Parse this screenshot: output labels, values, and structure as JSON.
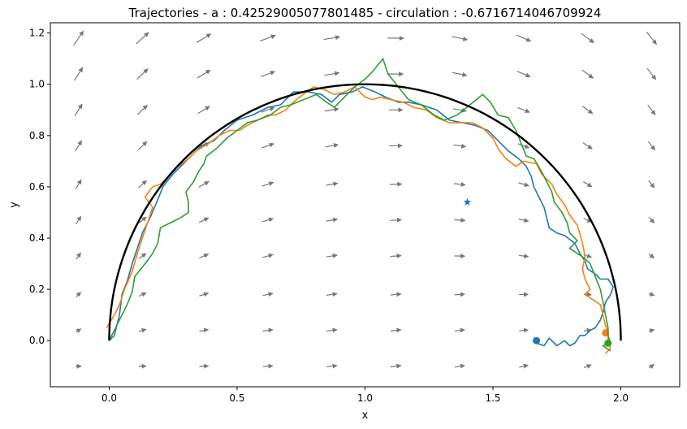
{
  "chart_data": {
    "type": "line",
    "title": "Trajectories - a : 0.42529005077801485 - circulation : -0.6716714046709924",
    "xlabel": "x",
    "ylabel": "y",
    "xlim": [
      -0.23,
      2.23
    ],
    "ylim": [
      -0.18,
      1.24
    ],
    "xticks": [
      0.0,
      0.5,
      1.0,
      1.5,
      2.0
    ],
    "xtick_labels": [
      "0.0",
      "0.5",
      "1.0",
      "1.5",
      "2.0"
    ],
    "yticks": [
      0.0,
      0.2,
      0.4,
      0.6,
      0.8,
      1.0,
      1.2
    ],
    "ytick_labels": [
      "0.0",
      "0.2",
      "0.4",
      "0.6",
      "0.8",
      "1.0",
      "1.2"
    ],
    "grid": false,
    "reference_curve": {
      "type": "semicircle",
      "center": [
        1.0,
        0.0
      ],
      "radius": 1.0,
      "color": "#000000"
    },
    "star_marker": {
      "x": 1.4,
      "y": 0.54,
      "color": "#1f77b4"
    },
    "vector_field": {
      "color": "#777777",
      "x": [
        -0.12,
        0.13,
        0.37,
        0.62,
        0.87,
        1.12,
        1.37,
        1.62,
        1.87,
        2.12
      ],
      "y": [
        -0.1,
        0.04,
        0.18,
        0.33,
        0.47,
        0.61,
        0.76,
        0.9,
        1.04,
        1.18
      ]
    },
    "series": [
      {
        "color": "#1f77b4",
        "points": [
          [
            0.0,
            0.0
          ],
          [
            0.02,
            0.02
          ],
          [
            0.03,
            0.06
          ],
          [
            0.04,
            0.1
          ],
          [
            0.05,
            0.18
          ],
          [
            0.07,
            0.23
          ],
          [
            0.09,
            0.3
          ],
          [
            0.11,
            0.36
          ],
          [
            0.13,
            0.42
          ],
          [
            0.16,
            0.48
          ],
          [
            0.19,
            0.55
          ],
          [
            0.21,
            0.6
          ],
          [
            0.25,
            0.65
          ],
          [
            0.29,
            0.69
          ],
          [
            0.33,
            0.73
          ],
          [
            0.36,
            0.76
          ],
          [
            0.41,
            0.78
          ],
          [
            0.45,
            0.82
          ],
          [
            0.5,
            0.86
          ],
          [
            0.56,
            0.88
          ],
          [
            0.62,
            0.91
          ],
          [
            0.67,
            0.92
          ],
          [
            0.72,
            0.97
          ],
          [
            0.78,
            0.97
          ],
          [
            0.83,
            0.96
          ],
          [
            0.87,
            0.93
          ],
          [
            0.9,
            0.96
          ],
          [
            0.95,
            0.97
          ],
          [
            0.99,
            0.99
          ],
          [
            1.04,
            0.97
          ],
          [
            1.08,
            0.95
          ],
          [
            1.13,
            0.93
          ],
          [
            1.17,
            0.93
          ],
          [
            1.22,
            0.92
          ],
          [
            1.28,
            0.9
          ],
          [
            1.33,
            0.86
          ],
          [
            1.38,
            0.85
          ],
          [
            1.43,
            0.84
          ],
          [
            1.48,
            0.82
          ],
          [
            1.52,
            0.78
          ],
          [
            1.56,
            0.74
          ],
          [
            1.6,
            0.71
          ],
          [
            1.63,
            0.68
          ],
          [
            1.65,
            0.64
          ],
          [
            1.66,
            0.6
          ],
          [
            1.68,
            0.56
          ],
          [
            1.7,
            0.52
          ],
          [
            1.71,
            0.48
          ],
          [
            1.72,
            0.44
          ],
          [
            1.75,
            0.42
          ],
          [
            1.78,
            0.41
          ],
          [
            1.82,
            0.38
          ],
          [
            1.84,
            0.34
          ],
          [
            1.86,
            0.31
          ],
          [
            1.87,
            0.28
          ],
          [
            1.9,
            0.26
          ],
          [
            1.92,
            0.24
          ],
          [
            1.95,
            0.24
          ],
          [
            1.97,
            0.21
          ],
          [
            1.96,
            0.18
          ],
          [
            1.94,
            0.15
          ],
          [
            1.93,
            0.11
          ],
          [
            1.92,
            0.08
          ],
          [
            1.9,
            0.05
          ],
          [
            1.88,
            0.04
          ],
          [
            1.86,
            0.02
          ],
          [
            1.84,
            0.02
          ],
          [
            1.82,
            -0.01
          ],
          [
            1.8,
            -0.02
          ],
          [
            1.78,
            0.0
          ],
          [
            1.75,
            -0.02
          ],
          [
            1.72,
            0.01
          ],
          [
            1.7,
            -0.02
          ],
          [
            1.67,
            -0.01
          ]
        ],
        "end_marker": [
          1.67,
          0.0
        ]
      },
      {
        "color": "#ff7f0e",
        "points": [
          [
            -0.01,
            0.05
          ],
          [
            0.02,
            0.1
          ],
          [
            0.04,
            0.14
          ],
          [
            0.06,
            0.2
          ],
          [
            0.09,
            0.27
          ],
          [
            0.11,
            0.34
          ],
          [
            0.13,
            0.4
          ],
          [
            0.15,
            0.46
          ],
          [
            0.17,
            0.52
          ],
          [
            0.14,
            0.56
          ],
          [
            0.17,
            0.6
          ],
          [
            0.2,
            0.61
          ],
          [
            0.23,
            0.64
          ],
          [
            0.27,
            0.68
          ],
          [
            0.31,
            0.71
          ],
          [
            0.34,
            0.74
          ],
          [
            0.39,
            0.77
          ],
          [
            0.43,
            0.8
          ],
          [
            0.47,
            0.82
          ],
          [
            0.51,
            0.82
          ],
          [
            0.54,
            0.84
          ],
          [
            0.58,
            0.86
          ],
          [
            0.62,
            0.88
          ],
          [
            0.65,
            0.88
          ],
          [
            0.69,
            0.9
          ],
          [
            0.72,
            0.93
          ],
          [
            0.77,
            0.97
          ],
          [
            0.8,
            0.99
          ],
          [
            0.84,
            0.98
          ],
          [
            0.88,
            0.96
          ],
          [
            0.92,
            0.97
          ],
          [
            0.96,
            0.99
          ],
          [
            1.0,
            0.95
          ],
          [
            1.03,
            0.94
          ],
          [
            1.06,
            0.95
          ],
          [
            1.1,
            0.94
          ],
          [
            1.15,
            0.93
          ],
          [
            1.19,
            0.91
          ],
          [
            1.24,
            0.9
          ],
          [
            1.28,
            0.87
          ],
          [
            1.33,
            0.85
          ],
          [
            1.38,
            0.85
          ],
          [
            1.42,
            0.85
          ],
          [
            1.46,
            0.83
          ],
          [
            1.5,
            0.79
          ],
          [
            1.52,
            0.75
          ],
          [
            1.55,
            0.71
          ],
          [
            1.59,
            0.68
          ],
          [
            1.62,
            0.7
          ],
          [
            1.67,
            0.69
          ],
          [
            1.69,
            0.65
          ],
          [
            1.73,
            0.61
          ],
          [
            1.75,
            0.57
          ],
          [
            1.78,
            0.53
          ],
          [
            1.8,
            0.49
          ],
          [
            1.83,
            0.45
          ],
          [
            1.85,
            0.38
          ],
          [
            1.86,
            0.33
          ],
          [
            1.85,
            0.28
          ],
          [
            1.86,
            0.24
          ],
          [
            1.88,
            0.2
          ],
          [
            1.86,
            0.18
          ],
          [
            1.89,
            0.16
          ],
          [
            1.92,
            0.14
          ],
          [
            1.93,
            0.1
          ],
          [
            1.94,
            0.06
          ],
          [
            1.95,
            0.03
          ],
          [
            1.95,
            0.0
          ],
          [
            1.96,
            -0.03
          ],
          [
            1.94,
            -0.05
          ]
        ],
        "end_marker": [
          1.94,
          0.03
        ]
      },
      {
        "color": "#2ca02c",
        "points": [
          [
            0.0,
            0.0
          ],
          [
            0.03,
            0.06
          ],
          [
            0.05,
            0.1
          ],
          [
            0.07,
            0.14
          ],
          [
            0.09,
            0.19
          ],
          [
            0.1,
            0.25
          ],
          [
            0.14,
            0.3
          ],
          [
            0.17,
            0.34
          ],
          [
            0.19,
            0.38
          ],
          [
            0.2,
            0.44
          ],
          [
            0.24,
            0.46
          ],
          [
            0.28,
            0.48
          ],
          [
            0.31,
            0.5
          ],
          [
            0.31,
            0.54
          ],
          [
            0.3,
            0.58
          ],
          [
            0.33,
            0.62
          ],
          [
            0.35,
            0.66
          ],
          [
            0.37,
            0.69
          ],
          [
            0.38,
            0.72
          ],
          [
            0.42,
            0.75
          ],
          [
            0.46,
            0.79
          ],
          [
            0.5,
            0.82
          ],
          [
            0.54,
            0.85
          ],
          [
            0.58,
            0.86
          ],
          [
            0.63,
            0.88
          ],
          [
            0.67,
            0.91
          ],
          [
            0.71,
            0.92
          ],
          [
            0.76,
            0.94
          ],
          [
            0.81,
            0.96
          ],
          [
            0.85,
            0.93
          ],
          [
            0.88,
            0.91
          ],
          [
            0.93,
            0.96
          ],
          [
            0.96,
            0.99
          ],
          [
            1.0,
            1.02
          ],
          [
            1.03,
            1.05
          ],
          [
            1.07,
            1.1
          ],
          [
            1.09,
            1.04
          ],
          [
            1.13,
            0.99
          ],
          [
            1.17,
            0.94
          ],
          [
            1.22,
            0.92
          ],
          [
            1.27,
            0.88
          ],
          [
            1.31,
            0.86
          ],
          [
            1.36,
            0.88
          ],
          [
            1.41,
            0.92
          ],
          [
            1.46,
            0.96
          ],
          [
            1.49,
            0.93
          ],
          [
            1.52,
            0.88
          ],
          [
            1.56,
            0.87
          ],
          [
            1.59,
            0.82
          ],
          [
            1.61,
            0.77
          ],
          [
            1.63,
            0.72
          ],
          [
            1.66,
            0.71
          ],
          [
            1.69,
            0.66
          ],
          [
            1.71,
            0.62
          ],
          [
            1.73,
            0.58
          ],
          [
            1.74,
            0.54
          ],
          [
            1.77,
            0.5
          ],
          [
            1.79,
            0.46
          ],
          [
            1.8,
            0.42
          ],
          [
            1.83,
            0.39
          ],
          [
            1.8,
            0.36
          ],
          [
            1.83,
            0.34
          ],
          [
            1.86,
            0.32
          ],
          [
            1.88,
            0.3
          ],
          [
            1.9,
            0.25
          ],
          [
            1.92,
            0.2
          ],
          [
            1.93,
            0.15
          ],
          [
            1.94,
            0.1
          ],
          [
            1.95,
            0.05
          ],
          [
            1.95,
            0.02
          ],
          [
            1.96,
            -0.01
          ],
          [
            1.93,
            -0.02
          ],
          [
            1.96,
            -0.04
          ]
        ],
        "end_marker": [
          1.95,
          -0.01
        ]
      }
    ]
  }
}
